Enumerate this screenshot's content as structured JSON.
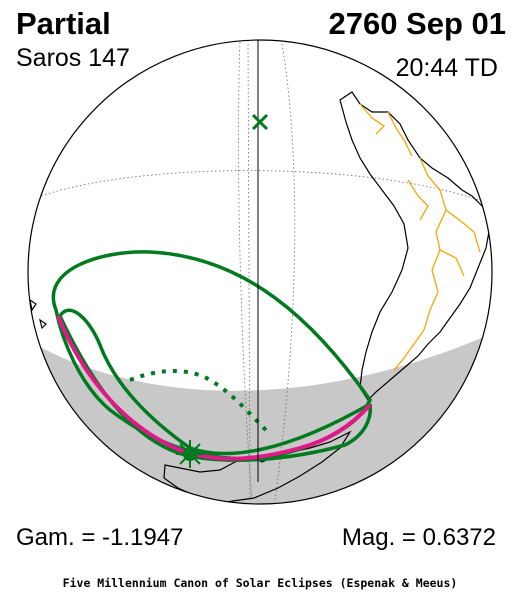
{
  "header": {
    "eclipse_type": "Partial",
    "date": "2760 Sep 01",
    "saros": "Saros 147",
    "time": "20:44 TD"
  },
  "stats": {
    "gamma": "Gam. = -1.1947",
    "magnitude": "Mag. = 0.6372"
  },
  "footer": {
    "credit": "Five Millennium Canon of Solar Eclipses (Espenak & Meeus)"
  },
  "colors": {
    "land": "#000000",
    "borders": "#f4a600",
    "penumbra_limits": "#007a1e",
    "greatest_eclipse_curve": "#e0188a",
    "night_shade": "#c8c8c8",
    "grid": "#666666"
  },
  "markers": {
    "subsolar": "cross-marker",
    "greatest_eclipse": "sun-marker"
  }
}
